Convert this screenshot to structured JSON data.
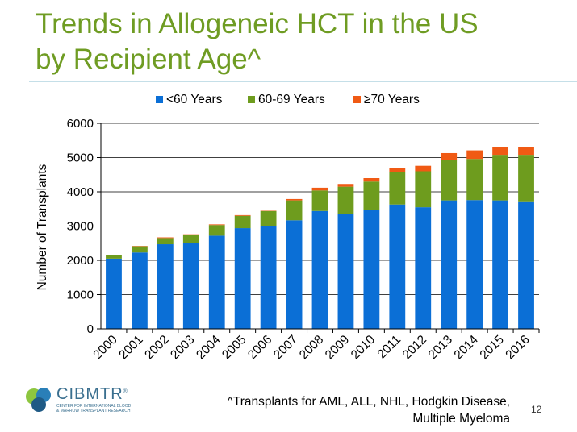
{
  "slide": {
    "title_line1": "Trends in Allogeneic HCT in the US",
    "title_line2": "by Recipient Age^",
    "footnote_line1": "^Transplants for AML, ALL, NHL, Hodgkin Disease,",
    "footnote_line2": "Multiple Myeloma",
    "page_number": "12"
  },
  "logo": {
    "name": "CIBMTR",
    "trademark": "®",
    "subtitle_line1": "CENTER FOR INTERNATIONAL BLOOD",
    "subtitle_line2": "& MARROW TRANSPLANT RESEARCH"
  },
  "chart_data": {
    "type": "bar",
    "stacked": true,
    "title": "",
    "xlabel": "",
    "ylabel": "Number of Transplants",
    "ylim": [
      0,
      6000
    ],
    "yticks": [
      0,
      1000,
      2000,
      3000,
      4000,
      5000,
      6000
    ],
    "grid": true,
    "legend_position": "top",
    "categories": [
      "2000",
      "2001",
      "2002",
      "2003",
      "2004",
      "2005",
      "2006",
      "2007",
      "2008",
      "2009",
      "2010",
      "2011",
      "2012",
      "2013",
      "2014",
      "2015",
      "2016"
    ],
    "series": [
      {
        "name": "<60 Years",
        "color": "#0b6fd6",
        "values": [
          2050,
          2230,
          2470,
          2500,
          2720,
          2940,
          3000,
          3170,
          3440,
          3350,
          3480,
          3630,
          3550,
          3750,
          3760,
          3750,
          3700
        ]
      },
      {
        "name": "60-69 Years",
        "color": "#6e9c1e",
        "values": [
          100,
          180,
          180,
          230,
          310,
          360,
          440,
          580,
          600,
          800,
          820,
          950,
          1050,
          1180,
          1200,
          1330,
          1380
        ]
      },
      {
        "name": "≥70 Years",
        "color": "#f05a14",
        "values": [
          10,
          10,
          20,
          30,
          20,
          20,
          10,
          40,
          80,
          80,
          100,
          120,
          160,
          200,
          250,
          220,
          230
        ]
      }
    ]
  }
}
